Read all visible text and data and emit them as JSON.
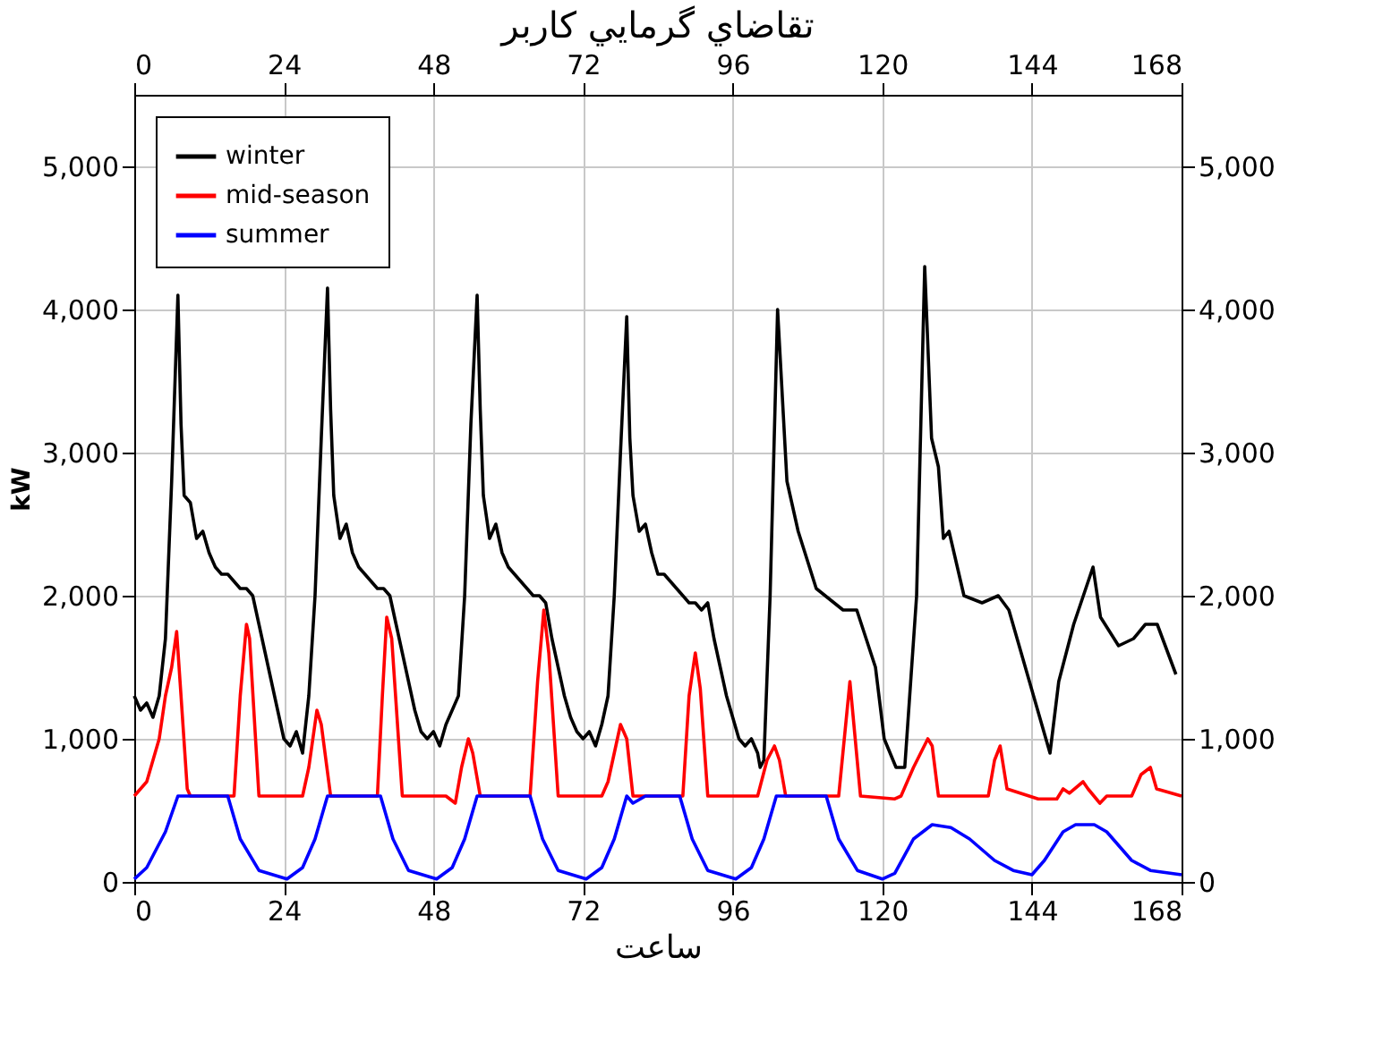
{
  "chart_data": {
    "type": "line",
    "title": "تقاضاي گرمايي كاربر",
    "xlabel": "ساعت",
    "ylabel": "kW",
    "xlim": [
      0,
      168
    ],
    "xticks": [
      0,
      24,
      48,
      72,
      96,
      120,
      144,
      168
    ],
    "x2lim": [
      0,
      168
    ],
    "x2ticks": [
      0,
      24,
      48,
      72,
      96,
      120,
      144,
      168
    ],
    "ylim": [
      0,
      5500
    ],
    "yticks": [
      {
        "value": 0,
        "label": "0"
      },
      {
        "value": 1000,
        "label": "1,000"
      },
      {
        "value": 2000,
        "label": "2,000"
      },
      {
        "value": 3000,
        "label": "3,000"
      },
      {
        "value": 4000,
        "label": "4,000"
      },
      {
        "value": 5000,
        "label": "5,000"
      }
    ],
    "y2lim": [
      0,
      5500
    ],
    "y2ticks": [
      {
        "value": 0,
        "label": "0"
      },
      {
        "value": 1000,
        "label": "1,000"
      },
      {
        "value": 2000,
        "label": "2,000"
      },
      {
        "value": 3000,
        "label": "3,000"
      },
      {
        "value": 4000,
        "label": "4,000"
      },
      {
        "value": 5000,
        "label": "5,000"
      }
    ],
    "grid": true,
    "legend": "top left",
    "marker": "none",
    "line_style": "solid",
    "series": [
      {
        "name": "winter",
        "color": "#000000",
        "x": [
          0,
          1,
          2,
          3,
          4,
          5,
          6,
          7,
          7.5,
          8,
          9,
          10,
          11,
          12,
          13,
          14,
          15,
          16,
          17,
          18,
          19,
          20,
          21,
          22,
          23,
          24,
          25,
          26,
          27,
          28,
          29,
          30,
          31,
          31.5,
          32,
          33,
          34,
          35,
          36,
          37,
          38,
          39,
          40,
          41,
          42,
          43,
          44,
          45,
          46,
          47,
          48,
          49,
          50,
          52,
          53,
          54,
          55,
          55.5,
          56,
          57,
          58,
          59,
          60,
          61,
          62,
          63,
          64,
          65,
          66,
          67,
          68,
          69,
          70,
          71,
          72,
          73,
          74,
          75,
          76,
          77,
          78,
          79,
          79.5,
          80,
          81,
          82,
          83,
          84,
          85,
          86,
          87,
          88,
          89,
          90,
          91,
          92,
          93,
          94,
          95,
          96,
          97,
          98,
          99,
          100,
          100.4,
          101,
          102,
          103.2,
          104.7,
          106.5,
          109.4,
          113.7,
          115.9,
          118.9,
          120.3,
          122.2,
          123.6,
          125.5,
          126.8,
          127.9,
          129,
          129.8,
          130.7,
          133.1,
          136,
          138.6,
          140.3,
          143.6,
          146.9,
          148.3,
          150.7,
          153.8,
          155,
          157.9,
          160.3,
          162.2,
          164.1,
          167.1
        ],
        "values": [
          1300,
          1200,
          1250,
          1150,
          1300,
          1700,
          2800,
          4100,
          3200,
          2700,
          2650,
          2400,
          2450,
          2300,
          2200,
          2150,
          2150,
          2100,
          2050,
          2050,
          2000,
          1800,
          1600,
          1400,
          1200,
          1000,
          950,
          1050,
          900,
          1300,
          2000,
          3100,
          4150,
          3300,
          2700,
          2400,
          2500,
          2300,
          2200,
          2150,
          2100,
          2050,
          2050,
          2000,
          1800,
          1600,
          1400,
          1200,
          1050,
          1000,
          1050,
          950,
          1100,
          1300,
          2000,
          3200,
          4100,
          3300,
          2700,
          2400,
          2500,
          2300,
          2200,
          2150,
          2100,
          2050,
          2000,
          2000,
          1950,
          1700,
          1500,
          1300,
          1150,
          1050,
          1000,
          1050,
          950,
          1100,
          1300,
          2000,
          3000,
          3950,
          3100,
          2700,
          2450,
          2500,
          2300,
          2150,
          2150,
          2100,
          2050,
          2000,
          1950,
          1950,
          1900,
          1950,
          1700,
          1500,
          1300,
          1150,
          1000,
          950,
          1000,
          900,
          800,
          850,
          2000,
          4000,
          2800,
          2450,
          2050,
          1900,
          1900,
          1500,
          1000,
          800,
          800,
          2000,
          4300,
          3100,
          2900,
          2400,
          2450,
          2000,
          1950,
          2000,
          1900,
          1400,
          900,
          1400,
          1800,
          2200,
          1850,
          1650,
          1700,
          1800,
          1800,
          1450
        ]
      },
      {
        "name": "mid-season",
        "color": "#ff0000",
        "x": [
          0,
          2,
          4,
          5,
          6,
          6.8,
          7.5,
          8.5,
          9,
          16,
          17,
          18,
          18.5,
          20,
          27,
          28,
          29.3,
          30,
          31.5,
          39,
          39.8,
          40.5,
          41.3,
          43,
          50,
          51.5,
          52.5,
          53.6,
          54.3,
          55.5,
          63.5,
          64.7,
          65.7,
          66.5,
          68,
          75,
          76,
          78,
          79,
          80,
          88,
          89,
          90,
          90.8,
          92,
          100,
          101.5,
          102.7,
          103.5,
          104.5,
          113,
          114.8,
          116.5,
          122,
          123,
          125,
          127.3,
          128,
          129,
          137,
          138,
          138.9,
          140,
          145,
          148,
          149,
          150,
          152.2,
          153,
          154.9,
          156,
          160,
          161.5,
          163,
          164,
          168
        ],
        "values": [
          600,
          700,
          1000,
          1300,
          1500,
          1750,
          1300,
          650,
          600,
          600,
          1300,
          1800,
          1700,
          600,
          600,
          800,
          1200,
          1100,
          600,
          600,
          1300,
          1850,
          1700,
          600,
          600,
          550,
          800,
          1000,
          900,
          600,
          600,
          1400,
          1900,
          1600,
          600,
          600,
          700,
          1100,
          1000,
          600,
          600,
          1300,
          1600,
          1350,
          600,
          600,
          850,
          950,
          850,
          600,
          600,
          1400,
          600,
          580,
          600,
          800,
          1000,
          950,
          600,
          600,
          850,
          950,
          650,
          580,
          580,
          650,
          620,
          700,
          650,
          550,
          600,
          600,
          750,
          800,
          650,
          600
        ]
      },
      {
        "name": "summer",
        "color": "#0000ff",
        "x": [
          0,
          2,
          5,
          7,
          10,
          15,
          17,
          20,
          24.5,
          27,
          29,
          31,
          34,
          39.5,
          41.5,
          44,
          48.5,
          51,
          53,
          55,
          58,
          63.5,
          65.5,
          68,
          72.5,
          75,
          77,
          79,
          80,
          82,
          87.5,
          89.5,
          92,
          96.5,
          99,
          101,
          103,
          106,
          111,
          113,
          116,
          120,
          122,
          125,
          128,
          131,
          134,
          138,
          141,
          144,
          146,
          149,
          151,
          154,
          156,
          160,
          163,
          168
        ],
        "values": [
          20,
          100,
          350,
          600,
          600,
          600,
          300,
          80,
          20,
          100,
          300,
          600,
          600,
          600,
          300,
          80,
          20,
          100,
          300,
          600,
          600,
          600,
          300,
          80,
          20,
          100,
          300,
          600,
          550,
          600,
          600,
          300,
          80,
          20,
          100,
          300,
          600,
          600,
          600,
          300,
          80,
          20,
          60,
          300,
          400,
          380,
          300,
          150,
          80,
          50,
          150,
          350,
          400,
          400,
          350,
          150,
          80,
          50
        ]
      }
    ]
  }
}
